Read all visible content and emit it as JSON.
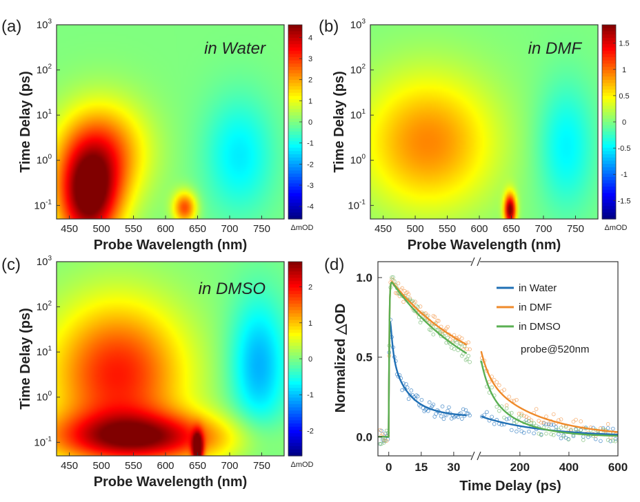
{
  "chart_data": {
    "type": "heatmap",
    "colors": {
      "line_water": "#1f6fb4",
      "line_dmf": "#ef8a2a",
      "line_dmso": "#5aaf52",
      "pt_water": "#3b83c4",
      "pt_dmf": "#f4a25c",
      "pt_dmso": "#7ec07a"
    },
    "common": {
      "xlabel": "Probe Wavelength (nm)",
      "ylabel": "Time Delay (ps)",
      "x_ticks": [
        "450",
        "500",
        "550",
        "600",
        "650",
        "700",
        "750"
      ],
      "x_range": [
        430,
        785
      ],
      "y_range_log": [
        -1.3,
        3
      ],
      "y_tick_base": "10",
      "y_tick_exps": [
        "-1",
        "0",
        "1",
        "2",
        "3"
      ],
      "colorbar_unit": "ΔmOD"
    },
    "panels": [
      {
        "letter": "(a)",
        "solvent": "in Water",
        "colorbar_ticks": [
          "4",
          "3",
          "2",
          "1",
          "0",
          "-1",
          "-2",
          "-3",
          "-4"
        ],
        "colorbar_range": [
          -4.6,
          4.6
        ],
        "features": [
          {
            "kind": "positive",
            "center_nm": 480,
            "center_log_ps": -0.85,
            "peak_mOD": 4.5,
            "width_nm": 48,
            "width_log": 1.1
          },
          {
            "kind": "positive",
            "center_nm": 500,
            "center_log_ps": 0.2,
            "peak_mOD": 2.6,
            "width_nm": 70,
            "width_log": 1.1
          },
          {
            "kind": "positive",
            "center_nm": 630,
            "center_log_ps": -1.05,
            "peak_mOD": 2.8,
            "width_nm": 18,
            "width_log": 0.35
          },
          {
            "kind": "negative",
            "center_nm": 715,
            "center_log_ps": 0.1,
            "peak_mOD": -1.3,
            "width_nm": 55,
            "width_log": 1.3
          }
        ]
      },
      {
        "letter": "(b)",
        "solvent": "in DMF",
        "colorbar_ticks": [
          "1.5",
          "1",
          "0.5",
          "0",
          "-0.5",
          "-1",
          "-1.5"
        ],
        "colorbar_range": [
          -1.85,
          1.85
        ],
        "features": [
          {
            "kind": "positive",
            "center_nm": 520,
            "center_log_ps": 0.4,
            "peak_mOD": 0.9,
            "width_nm": 105,
            "width_log": 1.5
          },
          {
            "kind": "positive",
            "center_nm": 648,
            "center_log_ps": -1.1,
            "peak_mOD": 1.85,
            "width_nm": 9,
            "width_log": 0.35
          },
          {
            "kind": "negative",
            "center_nm": 735,
            "center_log_ps": 0.3,
            "peak_mOD": -0.5,
            "width_nm": 45,
            "width_log": 1.4
          }
        ]
      },
      {
        "letter": "(c)",
        "solvent": "in DMSO",
        "colorbar_ticks": [
          "2",
          "1",
          "0",
          "-1",
          "-2"
        ],
        "colorbar_range": [
          -2.7,
          2.7
        ],
        "features": [
          {
            "kind": "positive",
            "center_nm": 525,
            "center_log_ps": 0.5,
            "peak_mOD": 1.9,
            "width_nm": 105,
            "width_log": 1.6
          },
          {
            "kind": "positive",
            "center_nm": 560,
            "center_log_ps": -0.9,
            "peak_mOD": 2.2,
            "width_nm": 140,
            "width_log": 0.55
          },
          {
            "kind": "positive",
            "center_nm": 650,
            "center_log_ps": -1.15,
            "peak_mOD": 2.6,
            "width_nm": 8,
            "width_log": 0.35
          },
          {
            "kind": "negative",
            "center_nm": 745,
            "center_log_ps": 0.7,
            "peak_mOD": -1.1,
            "width_nm": 45,
            "width_log": 1.5
          }
        ]
      }
    ],
    "kinetics": {
      "letter": "(d)",
      "type": "line+scatter",
      "xlabel": "Time Delay (ps)",
      "ylabel": "Normalized △OD",
      "x_ticks_left": [
        "0",
        "15",
        "30"
      ],
      "x_ticks_right": [
        "200",
        "400",
        "600"
      ],
      "x_range_left": [
        -5,
        38
      ],
      "x_range_right": [
        40,
        600
      ],
      "y_ticks": [
        "0.0",
        "0.5",
        "1.0"
      ],
      "y_range": [
        -0.12,
        1.1
      ],
      "probe_label": "probe@520nm",
      "series": [
        {
          "name": "in Water",
          "color_key": "line_water",
          "amplitudes": [
            0.45,
            0.4,
            0.15
          ],
          "taus_ps": [
            1.2,
            8,
            250
          ]
        },
        {
          "name": "in DMF",
          "color_key": "line_dmf",
          "amplitudes": [
            0.55,
            0.45
          ],
          "taus_ps": [
            35,
            220
          ]
        },
        {
          "name": "in DMSO",
          "color_key": "line_dmso",
          "amplitudes": [
            0.6,
            0.4
          ],
          "taus_ps": [
            35,
            140
          ]
        }
      ]
    }
  }
}
